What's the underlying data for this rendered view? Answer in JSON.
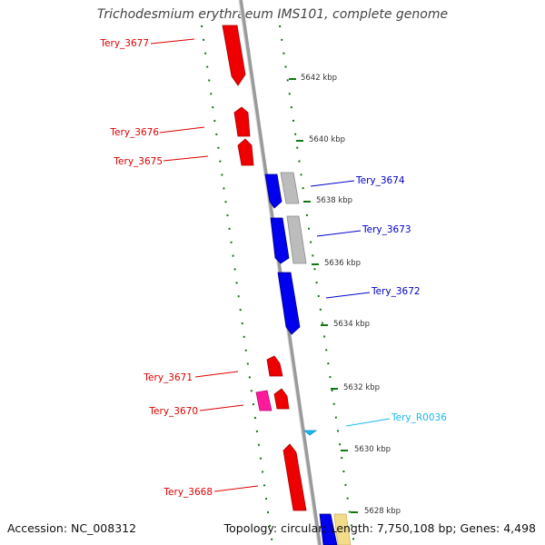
{
  "title": "Trichodesmium erythraeum IMS101, complete genome",
  "footer": {
    "accession": "Accession: NC_008312",
    "topology": "Topology: circular; Length: 7,750,108 bp; Genes: 4,498"
  },
  "colors": {
    "forward_gene": "#ff0000",
    "reverse_gene": "#0000ff",
    "rrna_gene": "#ff1493",
    "rna_gene": "#1ab8ef",
    "cds_gray": "#b8b8b8",
    "cds_yellow": "#f0d878",
    "backbone": "#888888",
    "tick_marks": "#117711"
  },
  "genes": [
    {
      "label": "Tery_3677",
      "strand": "forward",
      "color": "#d00000"
    },
    {
      "label": "Tery_3676",
      "strand": "forward",
      "color": "#d00000"
    },
    {
      "label": "Tery_3675",
      "strand": "forward",
      "color": "#d00000"
    },
    {
      "label": "Tery_3674",
      "strand": "reverse",
      "color": "#0000c0"
    },
    {
      "label": "Tery_3673",
      "strand": "reverse",
      "color": "#0000c0"
    },
    {
      "label": "Tery_3672",
      "strand": "reverse",
      "color": "#0000c0"
    },
    {
      "label": "Tery_3671",
      "strand": "forward",
      "color": "#d00000"
    },
    {
      "label": "Tery_3670",
      "strand": "forward",
      "color": "#d00000"
    },
    {
      "label": "Tery_R0036",
      "strand": "reverse",
      "color": "#1ab8ef"
    },
    {
      "label": "Tery_3668",
      "strand": "forward",
      "color": "#d00000"
    }
  ],
  "scale_ticks": [
    "5642 kbp",
    "5640 kbp",
    "5638 kbp",
    "5636 kbp",
    "5634 kbp",
    "5632 kbp",
    "5630 kbp",
    "5628 kbp"
  ]
}
